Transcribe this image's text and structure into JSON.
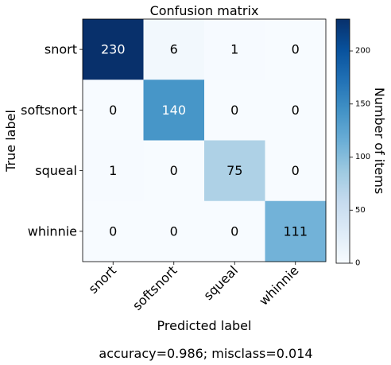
{
  "chart_data": {
    "type": "heatmap",
    "title": "Confusion matrix",
    "xlabel": "Predicted label",
    "ylabel": "True label",
    "categories": [
      "snort",
      "softsnort",
      "squeal",
      "whinnie"
    ],
    "x": [
      "snort",
      "softsnort",
      "squeal",
      "whinnie"
    ],
    "y": [
      "snort",
      "softsnort",
      "squeal",
      "whinnie"
    ],
    "values": [
      [
        230,
        6,
        1,
        0
      ],
      [
        0,
        140,
        0,
        0
      ],
      [
        1,
        0,
        75,
        0
      ],
      [
        0,
        0,
        0,
        111
      ]
    ],
    "colorbar": {
      "label": "Number of items",
      "range": [
        0,
        230
      ],
      "ticks": [
        0,
        50,
        100,
        150,
        200
      ]
    },
    "colormap": "Blues",
    "footer": "accuracy=0.986; misclass=0.014"
  }
}
